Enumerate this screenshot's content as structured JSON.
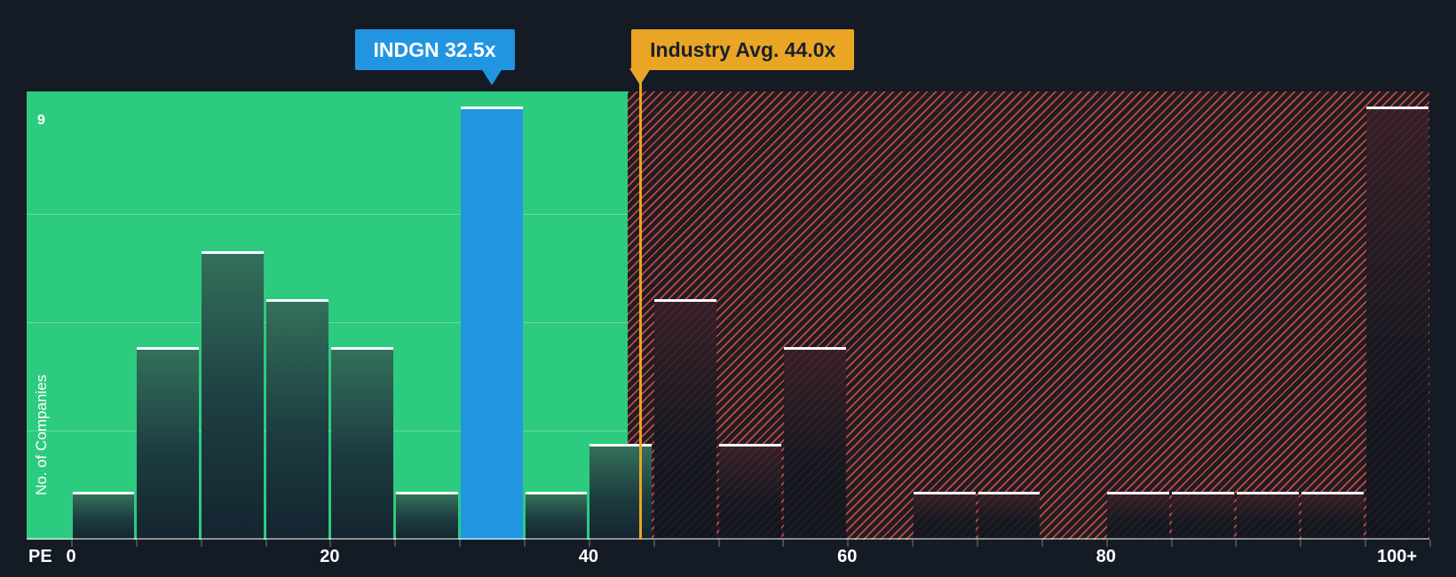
{
  "chart_data": {
    "type": "bar",
    "subtype": "histogram",
    "xlabel": "PE",
    "ylabel": "No. of Companies",
    "y_max": 9,
    "y_top_label": "9",
    "x_range": [
      0,
      105
    ],
    "bin_width": 5,
    "grid": "horizontal quarter gridlines over green zone",
    "legend_position": "none",
    "bins": [
      {
        "range": "0-5",
        "count": 1
      },
      {
        "range": "5-10",
        "count": 4
      },
      {
        "range": "10-15",
        "count": 6
      },
      {
        "range": "15-20",
        "count": 5
      },
      {
        "range": "20-25",
        "count": 4
      },
      {
        "range": "25-30",
        "count": 1
      },
      {
        "range": "30-35",
        "count": 9,
        "highlight": "company"
      },
      {
        "range": "35-40",
        "count": 1
      },
      {
        "range": "40-45",
        "count": 2
      },
      {
        "range": "45-50",
        "count": 5
      },
      {
        "range": "50-55",
        "count": 2
      },
      {
        "range": "55-60",
        "count": 4
      },
      {
        "range": "60-65",
        "count": 0
      },
      {
        "range": "65-70",
        "count": 1
      },
      {
        "range": "70-75",
        "count": 1
      },
      {
        "range": "75-80",
        "count": 0
      },
      {
        "range": "80-85",
        "count": 1
      },
      {
        "range": "85-90",
        "count": 1
      },
      {
        "range": "90-95",
        "count": 1
      },
      {
        "range": "95-100",
        "count": 1
      },
      {
        "range": "100+",
        "count": 9
      }
    ],
    "x_ticks": [
      {
        "label": "0",
        "pos": 0
      },
      {
        "label": "20",
        "pos": 20
      },
      {
        "label": "40",
        "pos": 40
      },
      {
        "label": "60",
        "pos": 60
      },
      {
        "label": "80",
        "pos": 80
      },
      {
        "label": "100+",
        "pos": 102.5
      }
    ],
    "company_marker": {
      "label": "INDGN 32.5x",
      "value": 32.5
    },
    "industry_marker": {
      "label": "Industry Avg. 44.0x",
      "value": 44.0
    },
    "green_zone_end": 43,
    "colors": {
      "background": "#141b24",
      "green_zone": "#2dcb7f",
      "company_blue": "#2295e2",
      "industry_orange": "#eaa524",
      "hatch_red": "#e65448",
      "bar_top_edge": "#ffffff"
    }
  }
}
